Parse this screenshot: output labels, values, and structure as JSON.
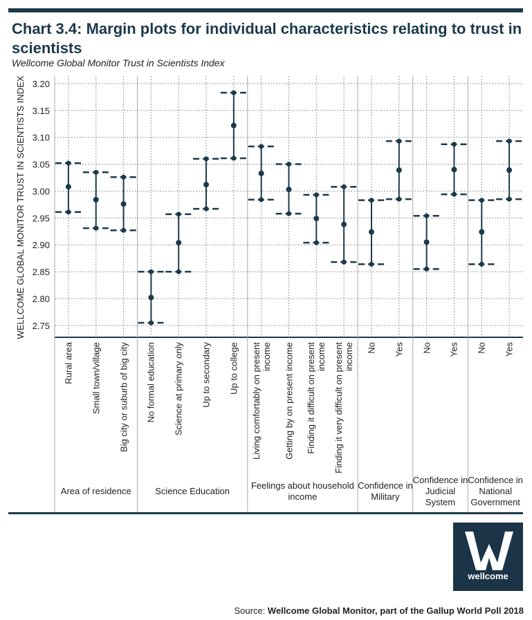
{
  "chart_data": {
    "type": "errorbar",
    "title": "Chart 3.4: Margin plots for individual characteristics relating to trust in scientists",
    "subtitle": "Wellcome Global Monitor Trust in Scientists Index",
    "y_label": "WELLCOME GLOBAL MONITOR TRUST IN SCIENTISTS INDEX",
    "groups": [
      {
        "name": "Area of residence",
        "categories": [
          "Rural area",
          "Small town/village",
          "Big city or suburb of big city"
        ]
      },
      {
        "name": "Science Education",
        "categories": [
          "No formal education",
          "Science at primary only",
          "Up to secondary",
          "Up to college"
        ]
      },
      {
        "name": "Feelings about household income",
        "categories": [
          "Living comfortably on present income",
          "Getting by on present income",
          "Finding it difficult on present income",
          "Finding it very difficult on present income"
        ]
      },
      {
        "name": "Confidence in Military",
        "categories": [
          "No",
          "Yes"
        ]
      },
      {
        "name": "Confidence in Judicial System",
        "categories": [
          "No",
          "Yes"
        ]
      },
      {
        "name": "Confidence in National Government",
        "categories": [
          "No",
          "Yes"
        ]
      }
    ],
    "values": [
      3.008,
      2.984,
      2.976,
      2.802,
      2.904,
      3.012,
      3.122,
      3.033,
      3.003,
      2.949,
      2.938,
      2.924,
      3.039,
      2.905,
      3.04,
      2.924,
      3.039
    ],
    "lower": [
      2.961,
      2.931,
      2.927,
      2.755,
      2.85,
      2.967,
      3.061,
      2.984,
      2.958,
      2.904,
      2.868,
      2.864,
      2.985,
      2.855,
      2.994,
      2.864,
      2.985
    ],
    "upper": [
      3.052,
      3.035,
      3.026,
      2.85,
      2.957,
      3.06,
      3.183,
      3.083,
      3.05,
      2.993,
      3.008,
      2.983,
      3.093,
      2.954,
      3.087,
      2.983,
      3.093
    ],
    "color": "#1b3a4b",
    "ylim": [
      2.728,
      3.214
    ],
    "yticks": [
      2.75,
      {
        "value": 2.8,
        "label": "2.80"
      },
      2.85,
      {
        "value": 2.9,
        "label": "2.90"
      },
      2.95,
      {
        "value": 3.0,
        "label": "3.00"
      },
      3.05,
      {
        "value": 3.1,
        "label": "3.10"
      },
      3.15,
      {
        "value": 3.2,
        "label": "3.20"
      }
    ],
    "grid": true
  },
  "logo": "wellcome",
  "source": {
    "label": "Source:",
    "text": "Wellcome Global Monitor, part of the Gallup World Poll 2018"
  }
}
